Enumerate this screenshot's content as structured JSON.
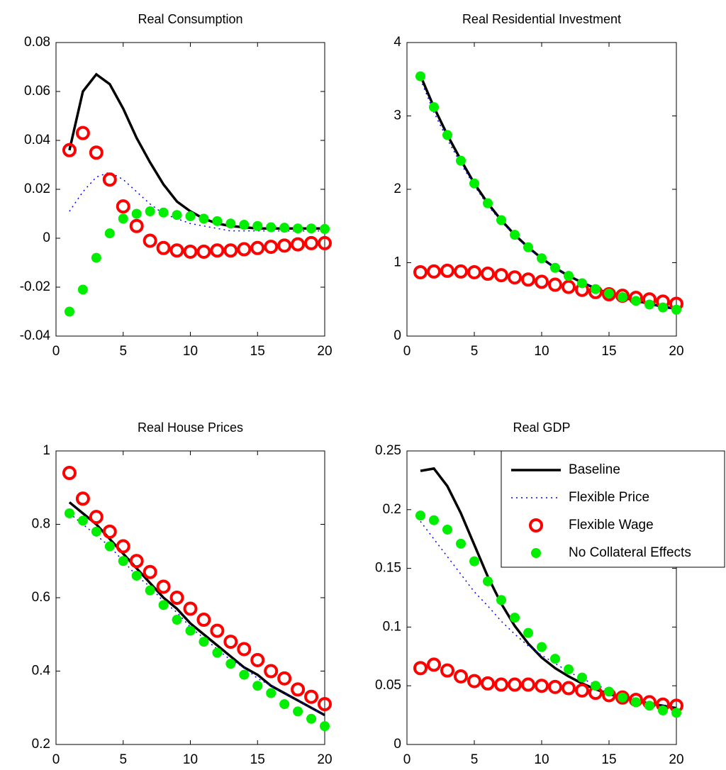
{
  "chart_data": [
    {
      "type": "line",
      "title": "Real Consumption",
      "x": [
        1,
        2,
        3,
        4,
        5,
        6,
        7,
        8,
        9,
        10,
        11,
        12,
        13,
        14,
        15,
        16,
        17,
        18,
        19,
        20
      ],
      "xlim": [
        0,
        20
      ],
      "xticks": [
        0,
        5,
        10,
        15,
        20
      ],
      "ylim": [
        -0.04,
        0.08
      ],
      "yticks": [
        -0.04,
        -0.02,
        0,
        0.02,
        0.04,
        0.06,
        0.08
      ],
      "series": [
        {
          "color": "#000000",
          "style": "solid",
          "values": [
            0.036,
            0.06,
            0.067,
            0.063,
            0.053,
            0.041,
            0.031,
            0.022,
            0.015,
            0.011,
            0.008,
            0.006,
            0.005,
            0.0045,
            0.004,
            0.004,
            0.004,
            0.004,
            0.004,
            0.004
          ]
        },
        {
          "color": "#0000ff",
          "style": "dotted",
          "values": [
            0.011,
            0.019,
            0.025,
            0.027,
            0.024,
            0.019,
            0.014,
            0.01,
            0.008,
            0.006,
            0.005,
            0.004,
            0.003,
            0.003,
            0.003,
            0.003,
            0.003,
            0.003,
            0.003,
            0.003
          ]
        },
        {
          "color": "#ff0000",
          "style": "open-circle",
          "values": [
            0.036,
            0.043,
            0.035,
            0.024,
            0.013,
            0.005,
            -0.001,
            -0.004,
            -0.005,
            -0.0055,
            -0.0055,
            -0.005,
            -0.005,
            -0.0045,
            -0.004,
            -0.0035,
            -0.003,
            -0.0025,
            -0.002,
            -0.002
          ]
        },
        {
          "color": "#00ee00",
          "style": "dot",
          "values": [
            -0.03,
            -0.021,
            -0.008,
            0.002,
            0.008,
            0.01,
            0.011,
            0.0105,
            0.0095,
            0.009,
            0.008,
            0.007,
            0.006,
            0.0055,
            0.005,
            0.0045,
            0.0043,
            0.004,
            0.004,
            0.0038
          ]
        }
      ]
    },
    {
      "type": "line",
      "title": "Real Residential Investment",
      "x": [
        1,
        2,
        3,
        4,
        5,
        6,
        7,
        8,
        9,
        10,
        11,
        12,
        13,
        14,
        15,
        16,
        17,
        18,
        19,
        20
      ],
      "xlim": [
        0,
        20
      ],
      "xticks": [
        0,
        5,
        10,
        15,
        20
      ],
      "ylim": [
        0,
        4
      ],
      "yticks": [
        0,
        1,
        2,
        3,
        4
      ],
      "series": [
        {
          "color": "#000000",
          "style": "solid",
          "values": [
            3.55,
            3.12,
            2.74,
            2.4,
            2.08,
            1.81,
            1.58,
            1.38,
            1.21,
            1.06,
            0.93,
            0.82,
            0.73,
            0.65,
            0.58,
            0.53,
            0.48,
            0.44,
            0.4,
            0.37
          ]
        },
        {
          "color": "#0000ff",
          "style": "dotted",
          "values": [
            3.5,
            3.05,
            2.68,
            2.35,
            2.05,
            1.78,
            1.56,
            1.37,
            1.2,
            1.05,
            0.93,
            0.82,
            0.73,
            0.65,
            0.58,
            0.53,
            0.48,
            0.44,
            0.4,
            0.37
          ]
        },
        {
          "color": "#ff0000",
          "style": "open-circle",
          "values": [
            0.87,
            0.88,
            0.89,
            0.88,
            0.87,
            0.85,
            0.83,
            0.8,
            0.77,
            0.74,
            0.7,
            0.67,
            0.63,
            0.6,
            0.57,
            0.55,
            0.52,
            0.5,
            0.47,
            0.44
          ]
        },
        {
          "color": "#00ee00",
          "style": "dot",
          "values": [
            3.54,
            3.12,
            2.74,
            2.39,
            2.08,
            1.81,
            1.58,
            1.38,
            1.21,
            1.06,
            0.93,
            0.82,
            0.72,
            0.64,
            0.58,
            0.53,
            0.48,
            0.43,
            0.39,
            0.36
          ]
        }
      ]
    },
    {
      "type": "line",
      "title": "Real House Prices",
      "x": [
        1,
        2,
        3,
        4,
        5,
        6,
        7,
        8,
        9,
        10,
        11,
        12,
        13,
        14,
        15,
        16,
        17,
        18,
        19,
        20
      ],
      "xlim": [
        0,
        20
      ],
      "xticks": [
        0,
        5,
        10,
        15,
        20
      ],
      "ylim": [
        0.2,
        1
      ],
      "yticks": [
        0.2,
        0.4,
        0.6,
        0.8,
        1
      ],
      "series": [
        {
          "color": "#000000",
          "style": "solid",
          "values": [
            0.86,
            0.83,
            0.8,
            0.76,
            0.72,
            0.68,
            0.64,
            0.6,
            0.57,
            0.53,
            0.5,
            0.47,
            0.44,
            0.41,
            0.39,
            0.36,
            0.34,
            0.32,
            0.3,
            0.28
          ]
        },
        {
          "color": "#0000ff",
          "style": "dotted",
          "values": [
            0.83,
            0.8,
            0.77,
            0.74,
            0.7,
            0.66,
            0.63,
            0.59,
            0.56,
            0.52,
            0.49,
            0.46,
            0.43,
            0.41,
            0.38,
            0.36,
            0.34,
            0.32,
            0.3,
            0.28
          ]
        },
        {
          "color": "#ff0000",
          "style": "open-circle",
          "values": [
            0.94,
            0.87,
            0.82,
            0.78,
            0.74,
            0.7,
            0.67,
            0.63,
            0.6,
            0.57,
            0.54,
            0.51,
            0.48,
            0.46,
            0.43,
            0.4,
            0.38,
            0.35,
            0.33,
            0.31
          ]
        },
        {
          "color": "#00ee00",
          "style": "dot",
          "values": [
            0.83,
            0.81,
            0.78,
            0.74,
            0.7,
            0.66,
            0.62,
            0.58,
            0.54,
            0.51,
            0.48,
            0.45,
            0.42,
            0.39,
            0.36,
            0.34,
            0.31,
            0.29,
            0.27,
            0.25
          ]
        }
      ]
    },
    {
      "type": "line",
      "title": "Real GDP",
      "x": [
        1,
        2,
        3,
        4,
        5,
        6,
        7,
        8,
        9,
        10,
        11,
        12,
        13,
        14,
        15,
        16,
        17,
        18,
        19,
        20
      ],
      "xlim": [
        0,
        20
      ],
      "xticks": [
        0,
        5,
        10,
        15,
        20
      ],
      "ylim": [
        0,
        0.25
      ],
      "yticks": [
        0,
        0.05,
        0.1,
        0.15,
        0.2,
        0.25
      ],
      "legend": "upper right",
      "series": [
        {
          "name": "Baseline",
          "color": "#000000",
          "style": "solid",
          "values": [
            0.233,
            0.235,
            0.22,
            0.197,
            0.17,
            0.143,
            0.12,
            0.101,
            0.086,
            0.074,
            0.065,
            0.058,
            0.052,
            0.047,
            0.043,
            0.04,
            0.037,
            0.035,
            0.033,
            0.031
          ]
        },
        {
          "name": "Flexible Price",
          "color": "#0000ff",
          "style": "dotted",
          "values": [
            0.19,
            0.175,
            0.16,
            0.145,
            0.13,
            0.118,
            0.105,
            0.094,
            0.084,
            0.076,
            0.069,
            0.062,
            0.056,
            0.051,
            0.046,
            0.042,
            0.039,
            0.036,
            0.033,
            0.031
          ]
        },
        {
          "name": "Flexible Wage",
          "color": "#ff0000",
          "style": "open-circle",
          "values": [
            0.065,
            0.068,
            0.063,
            0.058,
            0.054,
            0.052,
            0.051,
            0.051,
            0.051,
            0.05,
            0.049,
            0.048,
            0.046,
            0.044,
            0.042,
            0.04,
            0.038,
            0.036,
            0.034,
            0.033
          ]
        },
        {
          "name": "No Collateral Effects",
          "color": "#00ee00",
          "style": "dot",
          "values": [
            0.195,
            0.191,
            0.183,
            0.171,
            0.156,
            0.139,
            0.123,
            0.108,
            0.095,
            0.083,
            0.073,
            0.064,
            0.057,
            0.05,
            0.045,
            0.04,
            0.036,
            0.033,
            0.029,
            0.027
          ]
        }
      ]
    }
  ]
}
